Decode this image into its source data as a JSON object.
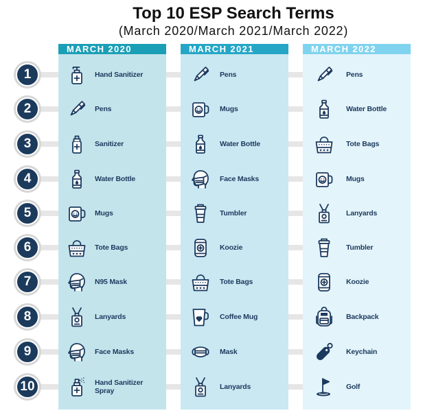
{
  "title": "Top 10 ESP Search Terms",
  "subtitle": "(March 2020/March 2021/March 2022)",
  "colors": {
    "title": "#111111",
    "item_text": "#1c3a5e",
    "icon": "#1c3a5e",
    "rank_circle": "#1b3a5c",
    "rank_number": "#ffffff",
    "row_band": "#e6e6e6"
  },
  "ranks": [
    "1",
    "2",
    "3",
    "4",
    "5",
    "6",
    "7",
    "8",
    "9",
    "10"
  ],
  "columns": [
    {
      "header": "MARCH 2020",
      "header_color": "#1b9fb6",
      "body_color": "#c4e4ec",
      "items": [
        {
          "label": "Hand Sanitizer",
          "icon": "hand-sanitizer-pump-icon"
        },
        {
          "label": "Pens",
          "icon": "pen-icon"
        },
        {
          "label": "Sanitizer",
          "icon": "sanitizer-bottle-icon"
        },
        {
          "label": "Water Bottle",
          "icon": "water-bottle-icon"
        },
        {
          "label": "Mugs",
          "icon": "mug-icon"
        },
        {
          "label": "Tote Bags",
          "icon": "tote-bag-icon"
        },
        {
          "label": "N95 Mask",
          "icon": "face-mask-person-icon"
        },
        {
          "label": "Lanyards",
          "icon": "lanyard-icon"
        },
        {
          "label": "Face Masks",
          "icon": "face-mask-person-icon"
        },
        {
          "label": "Hand Sanitizer Spray",
          "icon": "spray-bottle-icon"
        }
      ]
    },
    {
      "header": "MARCH 2021",
      "header_color": "#25a6c7",
      "body_color": "#c9e8f2",
      "items": [
        {
          "label": "Pens",
          "icon": "pen-icon"
        },
        {
          "label": "Mugs",
          "icon": "mug-icon"
        },
        {
          "label": "Water Bottle",
          "icon": "water-bottle-icon"
        },
        {
          "label": "Face Masks",
          "icon": "face-mask-person-icon"
        },
        {
          "label": "Tumbler",
          "icon": "tumbler-icon"
        },
        {
          "label": "Koozie",
          "icon": "koozie-icon"
        },
        {
          "label": "Tote Bags",
          "icon": "tote-bag-icon"
        },
        {
          "label": "Coffee Mug",
          "icon": "coffee-mug-icon"
        },
        {
          "label": "Mask",
          "icon": "surgical-mask-icon"
        },
        {
          "label": "Lanyards",
          "icon": "lanyard-icon"
        }
      ]
    },
    {
      "header": "MARCH 2022",
      "header_color": "#80d3ee",
      "body_color": "#e3f4fa",
      "items": [
        {
          "label": "Pens",
          "icon": "pen-icon"
        },
        {
          "label": "Water Bottle",
          "icon": "water-bottle-icon"
        },
        {
          "label": "Tote Bags",
          "icon": "tote-bag-icon"
        },
        {
          "label": "Mugs",
          "icon": "mug-icon"
        },
        {
          "label": "Lanyards",
          "icon": "lanyard-icon"
        },
        {
          "label": "Tumbler",
          "icon": "tumbler-icon"
        },
        {
          "label": "Koozie",
          "icon": "koozie-icon"
        },
        {
          "label": "Backpack",
          "icon": "backpack-icon"
        },
        {
          "label": "Keychain",
          "icon": "keychain-icon"
        },
        {
          "label": "Golf",
          "icon": "golf-flag-icon"
        }
      ]
    }
  ]
}
